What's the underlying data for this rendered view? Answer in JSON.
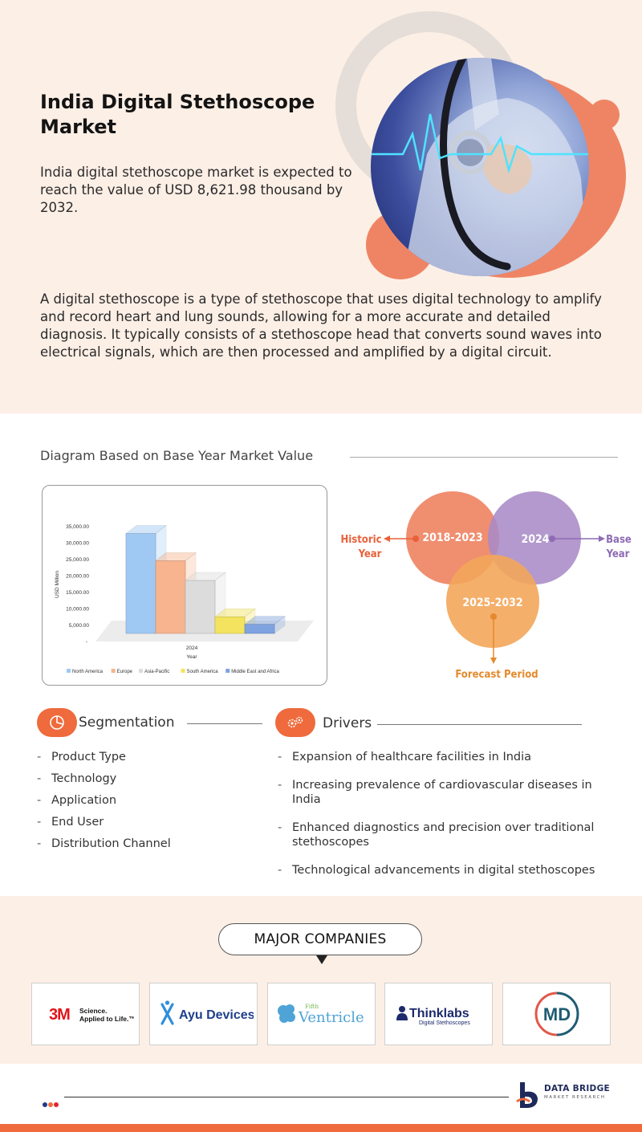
{
  "hero": {
    "title": "India Digital Stethoscope Market",
    "lead": "India digital stethoscope market is expected to reach the value of USD 8,621.98 thousand by 2032.",
    "description": "A digital stethoscope is a type of stethoscope that uses digital technology to amplify and record heart and lung sounds, allowing for a more accurate and detailed diagnosis. It typically consists of a stethoscope head that converts sound waves into electrical signals, which are then processed and amplified by a digital circuit."
  },
  "diagram": {
    "title": "Diagram Based on Base Year Market Value"
  },
  "chart_data": {
    "type": "bar",
    "categories": [
      "2024"
    ],
    "series": [
      {
        "name": "North America",
        "values": [
          33000
        ],
        "color": "#9fc9f3"
      },
      {
        "name": "Europe",
        "values": [
          24000
        ],
        "color": "#f7b48f"
      },
      {
        "name": "Asia-Pacific",
        "values": [
          17500
        ],
        "color": "#dcdcdc"
      },
      {
        "name": "South America",
        "values": [
          5500
        ],
        "color": "#f3e35e"
      },
      {
        "name": "Middle East and Africa",
        "values": [
          3000
        ],
        "color": "#7fa3e0"
      }
    ],
    "yticks": [
      "35,000.00",
      "30,000.00",
      "25,000.00",
      "20,000.00",
      "15,000.00",
      "10,000.00",
      "5,000.00",
      "-"
    ],
    "ylabel": "USD Million",
    "xtick": "2024",
    "xlabel": "Year",
    "ylim": [
      0,
      35000
    ]
  },
  "venn": {
    "historic_circle": "2018-2023",
    "base_circle": "2024",
    "forecast_circle": "2025-2032",
    "historic_label_1": "Historic",
    "historic_label_2": "Year",
    "base_label_1": "Base",
    "base_label_2": "Year",
    "forecast_label": "Forecast Period",
    "colors": {
      "historic": "#ef8464",
      "base": "#a98bc6",
      "forecast": "#f3a65a"
    }
  },
  "segmentation": {
    "title": "Segmentation",
    "icon": "pie-chart-icon",
    "items": [
      "Product Type",
      "Technology",
      "Application",
      "End User",
      "Distribution Channel"
    ]
  },
  "drivers": {
    "title": "Drivers",
    "icon": "gears-icon",
    "items": [
      "Expansion of healthcare facilities in India",
      "Increasing prevalence of cardiovascular diseases in India",
      "Enhanced diagnostics and precision over traditional stethoscopes",
      "Technological advancements in digital stethoscopes"
    ]
  },
  "companies": {
    "title": "MAJOR COMPANIES",
    "logos": {
      "threem_mark": "3M",
      "threem_tag_1": "Science.",
      "threem_tag_2": "Applied to Life.™",
      "ayu": "Ayu Devices",
      "fifth_small": "Fifth",
      "fifth_big": "Ventricle",
      "thinklabs_main": "Thinklabs",
      "thinklabs_sub": "Digital Stethoscopes",
      "md": "MD"
    }
  },
  "footer": {
    "brand_line_1": "DATA BRIDGE",
    "brand_line_2": "MARKET RESEARCH",
    "accent": "#ef6a3c"
  }
}
